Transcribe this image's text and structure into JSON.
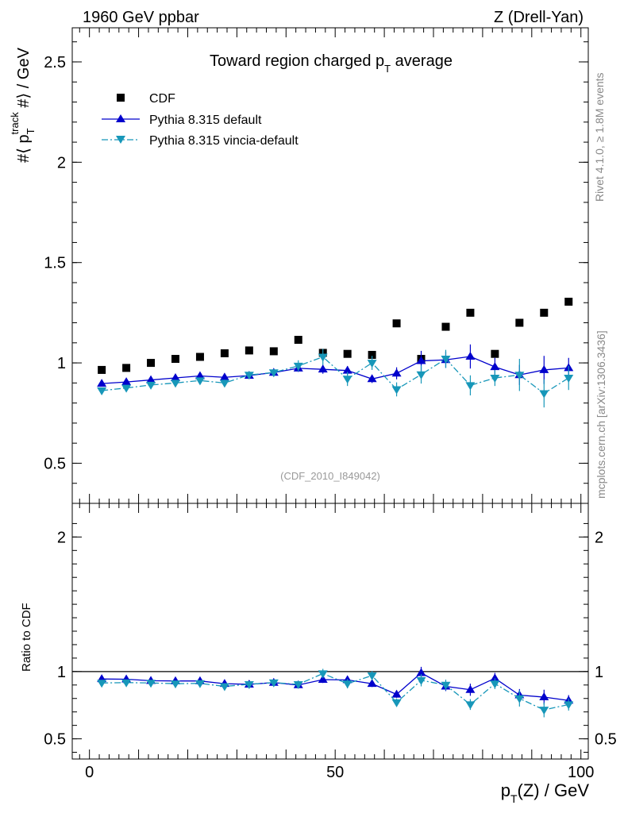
{
  "header": {
    "left": "1960 GeV ppbar",
    "right": "Z (Drell-Yan)"
  },
  "side_labels": {
    "rivet": "Rivet 4.1.0, ≥ 1.8M events",
    "mcplots": "mcplots.cern.ch [arXiv:1306.3436]"
  },
  "colors": {
    "cdf": "#000000",
    "pythia_default": "#0000cc",
    "pythia_vincia": "#1797b9",
    "axis": "#000000",
    "watermark": "#999999"
  },
  "chart_data": [
    {
      "type": "scatter",
      "panel": "main",
      "title_main": "Toward region charged p",
      "title_sub": "T",
      "title_rest": " average",
      "ylabel": "#⟨ p_T^track #⟩ / GeV",
      "ylabel_parts": {
        "pre": "#⟨ p",
        "sub": "T",
        "sup": "track",
        "post": " #⟩ / GeV"
      },
      "xlim": [
        -3.5,
        101.5
      ],
      "ylim": [
        0.3,
        2.67
      ],
      "yticks": [
        0.5,
        1,
        1.5,
        2,
        2.5
      ],
      "ytick_labels": [
        "0.5",
        "1",
        "1.5",
        "2",
        "2.5"
      ],
      "watermark": "(CDF_2010_I849042)",
      "legend_position": "top-left",
      "x": [
        2.5,
        7.5,
        12.5,
        17.5,
        22.5,
        27.5,
        32.5,
        37.5,
        42.5,
        47.5,
        52.5,
        57.5,
        62.5,
        67.5,
        72.5,
        77.5,
        82.5,
        87.5,
        92.5,
        97.5
      ],
      "series": [
        {
          "name": "CDF",
          "marker": "square",
          "line": "none",
          "values": [
            0.965,
            0.975,
            1.0,
            1.02,
            1.03,
            1.048,
            1.062,
            1.058,
            1.115,
            1.05,
            1.045,
            1.04,
            1.197,
            1.02,
            1.18,
            1.25,
            1.045,
            1.2,
            1.25,
            1.305
          ],
          "errors": []
        },
        {
          "name": "Pythia 8.315 default",
          "marker": "triangle-up",
          "line": "solid",
          "values": [
            0.897,
            0.905,
            0.915,
            0.925,
            0.935,
            0.928,
            0.937,
            0.952,
            0.973,
            0.968,
            0.962,
            0.92,
            0.948,
            1.01,
            1.015,
            1.032,
            0.98,
            0.94,
            0.965,
            0.975
          ],
          "errors": [
            0.008,
            0.008,
            0.008,
            0.008,
            0.01,
            0.01,
            0.012,
            0.012,
            0.018,
            0.022,
            0.022,
            0.02,
            0.03,
            0.05,
            0.04,
            0.06,
            0.045,
            0.05,
            0.07,
            0.05
          ]
        },
        {
          "name": "Pythia 8.315 vincia-default",
          "marker": "triangle-down",
          "line": "dashdot",
          "values": [
            0.862,
            0.875,
            0.89,
            0.9,
            0.912,
            0.9,
            0.94,
            0.952,
            0.985,
            1.03,
            0.92,
            1.0,
            0.868,
            0.942,
            1.02,
            0.888,
            0.925,
            0.94,
            0.848,
            0.925
          ],
          "errors": [
            0.01,
            0.01,
            0.01,
            0.012,
            0.014,
            0.016,
            0.018,
            0.018,
            0.028,
            0.04,
            0.035,
            0.035,
            0.035,
            0.045,
            0.045,
            0.05,
            0.04,
            0.08,
            0.07,
            0.06
          ]
        }
      ]
    },
    {
      "type": "line",
      "panel": "ratio",
      "ylabel": "Ratio to CDF",
      "xlabel_parts": {
        "pre": "p",
        "sub": "T",
        "post": "(Z) / GeV"
      },
      "xlim": [
        -3.5,
        101.5
      ],
      "ylim": [
        0.35,
        2.25
      ],
      "yticks": [
        0.5,
        1,
        2
      ],
      "ytick_labels": [
        "0.5",
        "1",
        "2"
      ],
      "xticks": [
        0,
        50,
        100
      ],
      "xtick_labels": [
        "0",
        "50",
        "100"
      ],
      "reference_line": 1,
      "x": [
        2.5,
        7.5,
        12.5,
        17.5,
        22.5,
        27.5,
        32.5,
        37.5,
        42.5,
        47.5,
        52.5,
        57.5,
        62.5,
        67.5,
        72.5,
        77.5,
        82.5,
        87.5,
        92.5,
        97.5
      ],
      "series": [
        {
          "name": "Pythia 8.315 default",
          "values": [
            0.945,
            0.943,
            0.932,
            0.93,
            0.93,
            0.91,
            0.905,
            0.918,
            0.9,
            0.94,
            0.938,
            0.91,
            0.83,
            0.99,
            0.89,
            0.865,
            0.95,
            0.825,
            0.81,
            0.785
          ],
          "errors": [
            0.01,
            0.01,
            0.01,
            0.01,
            0.012,
            0.012,
            0.014,
            0.014,
            0.018,
            0.025,
            0.025,
            0.025,
            0.025,
            0.045,
            0.035,
            0.045,
            0.04,
            0.045,
            0.055,
            0.04
          ]
        },
        {
          "name": "Pythia 8.315 vincia-default",
          "values": [
            0.915,
            0.918,
            0.915,
            0.91,
            0.912,
            0.89,
            0.905,
            0.918,
            0.905,
            0.985,
            0.91,
            0.97,
            0.77,
            0.935,
            0.9,
            0.755,
            0.91,
            0.8,
            0.715,
            0.755
          ],
          "errors": [
            0.012,
            0.012,
            0.012,
            0.014,
            0.015,
            0.017,
            0.018,
            0.018,
            0.025,
            0.035,
            0.035,
            0.035,
            0.03,
            0.045,
            0.04,
            0.04,
            0.04,
            0.06,
            0.055,
            0.045
          ]
        }
      ]
    }
  ]
}
